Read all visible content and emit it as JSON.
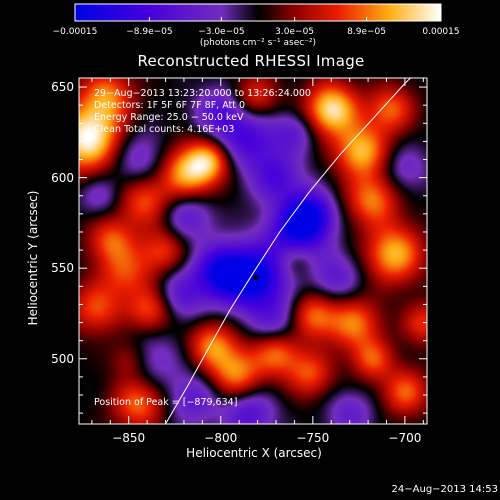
{
  "chart_data": {
    "type": "heatmap",
    "title": "Reconstructed RHESSI Image",
    "xlabel": "Heliocentric X (arcsec)",
    "ylabel": "Heliocentric Y (arcsec)",
    "xlim": [
      -877,
      -688
    ],
    "ylim": [
      464,
      655
    ],
    "x_ticks": [
      -850,
      -800,
      -750,
      -700
    ],
    "x_tick_labels": [
      "−850",
      "−800",
      "−750",
      "−700"
    ],
    "y_ticks": [
      500,
      550,
      600,
      650
    ],
    "y_tick_labels": [
      "500",
      "550",
      "600",
      "650"
    ],
    "colorbar": {
      "min": -0.00015,
      "max": 0.00015,
      "tick_values": [
        -0.00015,
        -8.9e-05,
        -3e-05,
        3e-05,
        8.9e-05,
        0.00015
      ],
      "tick_labels": [
        "−0.00015",
        "−8.9e−05",
        "−3.0e−05",
        "3.0e−05",
        "8.9e−05",
        "0.00015"
      ],
      "units_text": "(photons cm⁻² s⁻¹ asec⁻²)"
    },
    "annotations": {
      "time_range": "29−Aug−2013 13:23:20.000 to 13:26:24.000",
      "detectors": "Detectors: 1F 5F 6F 7F 8F, Att 0",
      "energy": "Energy Range: 25.0 − 50.0 keV",
      "clean": "Clean    Total counts: 4.16E+03",
      "peak": "Position of Peak = [−879,634]"
    },
    "peak_marker": {
      "x": -781,
      "y": 545
    },
    "limb_curve": [
      [
        -830,
        464
      ],
      [
        -818,
        485
      ],
      [
        -806,
        507
      ],
      [
        -795,
        527
      ],
      [
        -782,
        548
      ],
      [
        -768,
        570
      ],
      [
        -752,
        592
      ],
      [
        -735,
        613
      ],
      [
        -717,
        633
      ],
      [
        -700,
        652
      ],
      [
        -697,
        655
      ]
    ],
    "blobs": [
      {
        "x": -872,
        "y": 622,
        "v": 1.0,
        "r": 13
      },
      {
        "x": -862,
        "y": 646,
        "v": 0.55,
        "r": 10
      },
      {
        "x": -818,
        "y": 603,
        "v": 0.8,
        "r": 11
      },
      {
        "x": -806,
        "y": 610,
        "v": 0.55,
        "r": 8
      },
      {
        "x": -842,
        "y": 588,
        "v": 0.55,
        "r": 10
      },
      {
        "x": -832,
        "y": 560,
        "v": 0.45,
        "r": 9
      },
      {
        "x": -852,
        "y": 548,
        "v": 0.45,
        "r": 10
      },
      {
        "x": -868,
        "y": 528,
        "v": 0.5,
        "r": 10
      },
      {
        "x": -860,
        "y": 566,
        "v": 0.5,
        "r": 9
      },
      {
        "x": -838,
        "y": 527,
        "v": 0.55,
        "r": 9
      },
      {
        "x": -805,
        "y": 508,
        "v": 0.6,
        "r": 9
      },
      {
        "x": -792,
        "y": 492,
        "v": 0.65,
        "r": 10
      },
      {
        "x": -770,
        "y": 504,
        "v": 0.6,
        "r": 9
      },
      {
        "x": -750,
        "y": 524,
        "v": 0.6,
        "r": 9
      },
      {
        "x": -752,
        "y": 492,
        "v": 0.5,
        "r": 9
      },
      {
        "x": -728,
        "y": 520,
        "v": 0.6,
        "r": 10
      },
      {
        "x": -706,
        "y": 558,
        "v": 0.75,
        "r": 11
      },
      {
        "x": -718,
        "y": 588,
        "v": 0.6,
        "r": 10
      },
      {
        "x": -724,
        "y": 615,
        "v": 0.75,
        "r": 10
      },
      {
        "x": -740,
        "y": 638,
        "v": 0.9,
        "r": 10
      },
      {
        "x": -708,
        "y": 638,
        "v": 0.55,
        "r": 9
      },
      {
        "x": -782,
        "y": 644,
        "v": 0.5,
        "r": 9
      },
      {
        "x": -845,
        "y": 476,
        "v": 0.6,
        "r": 10
      },
      {
        "x": -700,
        "y": 482,
        "v": 0.55,
        "r": 9
      },
      {
        "x": -718,
        "y": 500,
        "v": 0.5,
        "r": 8
      },
      {
        "x": -690,
        "y": 520,
        "v": 0.45,
        "r": 8
      },
      {
        "x": -760,
        "y": 556,
        "v": 0.4,
        "r": 8
      },
      {
        "x": -850,
        "y": 500,
        "v": 0.4,
        "r": 8
      },
      {
        "x": -782,
        "y": 545,
        "v": -1.0,
        "r": 12
      },
      {
        "x": -800,
        "y": 548,
        "v": -0.85,
        "r": 10
      },
      {
        "x": -760,
        "y": 568,
        "v": -0.8,
        "r": 11
      },
      {
        "x": -752,
        "y": 580,
        "v": -0.85,
        "r": 9
      },
      {
        "x": -785,
        "y": 622,
        "v": -0.55,
        "r": 12
      },
      {
        "x": -800,
        "y": 636,
        "v": -0.45,
        "r": 10
      },
      {
        "x": -770,
        "y": 600,
        "v": -0.5,
        "r": 10
      },
      {
        "x": -818,
        "y": 580,
        "v": -0.45,
        "r": 10
      },
      {
        "x": -845,
        "y": 610,
        "v": -0.4,
        "r": 12
      },
      {
        "x": -822,
        "y": 535,
        "v": -0.45,
        "r": 10
      },
      {
        "x": -840,
        "y": 500,
        "v": -0.35,
        "r": 12
      },
      {
        "x": -815,
        "y": 478,
        "v": -0.4,
        "r": 10
      },
      {
        "x": -785,
        "y": 470,
        "v": -0.5,
        "r": 10
      },
      {
        "x": -770,
        "y": 520,
        "v": -0.4,
        "r": 10
      },
      {
        "x": -738,
        "y": 545,
        "v": -0.4,
        "r": 10
      },
      {
        "x": -730,
        "y": 470,
        "v": -0.35,
        "r": 9
      },
      {
        "x": -700,
        "y": 605,
        "v": -0.3,
        "r": 9
      },
      {
        "x": -760,
        "y": 625,
        "v": -0.35,
        "r": 8
      },
      {
        "x": -866,
        "y": 590,
        "v": -0.3,
        "r": 8
      }
    ]
  },
  "footer": {
    "date": "24−Aug−2013 14:53"
  }
}
